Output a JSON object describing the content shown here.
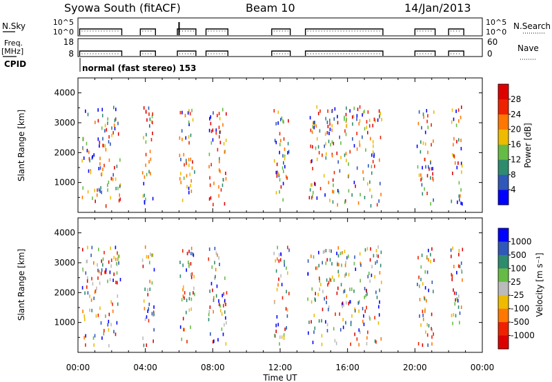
{
  "header": {
    "station": "Syowa South (fitACF)",
    "beam": "Beam 10",
    "date": "14/Jan/2013"
  },
  "panels": {
    "nsky_label": "N.Sky",
    "nsky_ticks": [
      "10^5",
      "10^0"
    ],
    "nsearch_label": "N.Search",
    "nsearch_ticks": [
      "10^5",
      "10^0"
    ],
    "freq_label": "Freq.",
    "freq_unit": "[MHz]",
    "freq_ticks": [
      "18",
      "8"
    ],
    "nave_label": "Nave",
    "nave_ticks": [
      "60",
      "0"
    ],
    "cpid_label": "CPID",
    "cpid_text": "normal (fast stereo) 153"
  },
  "chart_data": [
    {
      "type": "scatter",
      "name": "power-panel",
      "xlabel": "",
      "ylabel": "Slant Range [km]",
      "yticks": [
        "1000",
        "2000",
        "3000",
        "4000"
      ],
      "ylim": [
        0,
        4500
      ],
      "colorbar": {
        "label": "Power [dB]",
        "ticks": [
          "4",
          "8",
          "12",
          "16",
          "20",
          "24",
          "28"
        ],
        "colors": [
          "#0000ff",
          "#2f58b8",
          "#2e8b6e",
          "#66bb44",
          "#eebb00",
          "#ff7700",
          "#ee2200",
          "#dd0000"
        ]
      }
    },
    {
      "type": "scatter",
      "name": "velocity-panel",
      "xlabel": "Time UT",
      "ylabel": "Slant Range [km]",
      "xticks": [
        "00:00",
        "04:00",
        "08:00",
        "12:00",
        "16:00",
        "20:00",
        "00:00"
      ],
      "xlim": [
        0,
        24
      ],
      "yticks": [
        "1000",
        "2000",
        "3000",
        "4000"
      ],
      "ylim": [
        0,
        4500
      ],
      "colorbar": {
        "label": "Velocity [m s⁻¹]",
        "ticks": [
          "1000",
          "500",
          "100",
          "25",
          "-25",
          "-100",
          "-500",
          "-1000"
        ],
        "colors": [
          "#0000ff",
          "#2f58b8",
          "#2e8b6e",
          "#66bb44",
          "#bbbbbb",
          "#eebb00",
          "#ff7700",
          "#ee2200",
          "#dd0000"
        ]
      }
    }
  ],
  "segments_ut": [
    [
      0.1,
      2.6
    ],
    [
      3.7,
      4.6
    ],
    [
      5.9,
      7.0
    ],
    [
      7.6,
      8.9
    ],
    [
      11.5,
      12.6
    ],
    [
      13.5,
      18.1
    ],
    [
      20.0,
      21.2
    ],
    [
      22.0,
      22.9
    ]
  ]
}
